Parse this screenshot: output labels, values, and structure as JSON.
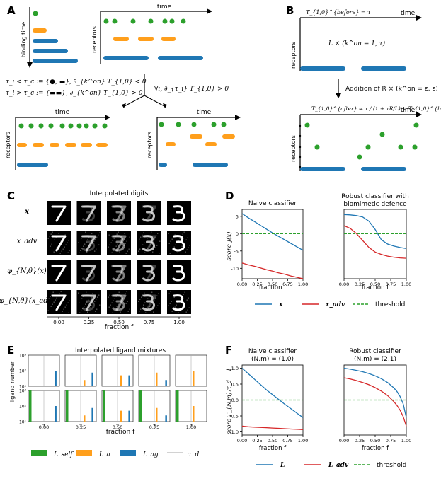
{
  "colors": {
    "green": "#2ca02c",
    "orange": "#ff9f1c",
    "blue": "#1f77b4",
    "red": "#d62728",
    "gray": "#888888"
  },
  "panel_a": {
    "label": "A",
    "axis_time": "time",
    "axis_binding_time": "binding time",
    "axis_receptors": "receptors",
    "eq1": "τ_i < τ_c := {●, ▬}, ∂_{k^on} T_{1,0} < 0",
    "eq2": "τ_i > τ_c := {▬▬}, ∂_{k^on} T_{1,0} > 0",
    "eq3": "∀i, ∂_{τ_i} T_{1,0} > 0"
  },
  "panel_b": {
    "label": "B",
    "axis_time": "time",
    "axis_receptors": "receptors",
    "top_eq": "T_{1,0}^{before} = τ",
    "mid_eq": "L × (k^on = 1, τ)",
    "addition": "Addition of R × (k^on = ε, ε)",
    "bottom_eq": "T_{1,0}^{after} ≃ τ / (1 + τR/L) < T_{1,0}^{before}"
  },
  "panel_c": {
    "label": "C",
    "title": "Interpolated digits",
    "rows": [
      "x",
      "x_adv",
      "φ_{N,θ}(x)",
      "φ_{N,θ}(x_adv)"
    ],
    "xticks": [
      "0.00",
      "0.25",
      "0.50",
      "0.75",
      "1.00"
    ],
    "xlabel": "fraction f"
  },
  "panel_d": {
    "label": "D",
    "left_title": "Naive classifier",
    "right_title": "Robust classifier with\nbiomimetic defence",
    "ylabel": "score  J(x)",
    "xlabel": "fraction f",
    "legend": [
      "x",
      "x_adv",
      "threshold"
    ]
  },
  "panel_e": {
    "label": "E",
    "title": "Interpolated ligand mixtures",
    "ylabel": "ligand number",
    "xlabel": "fraction f",
    "tau_label": "τ",
    "legend": [
      "L_self",
      "L_a",
      "L_ag",
      "τ_d"
    ]
  },
  "panel_f": {
    "label": "F",
    "left_title": "Naive classifier\n(N,m) = (1,0)",
    "right_title": "Robust classifier\n(N,m) = (2,1)",
    "ylabel": "score  T_{N,m}/τ_d − 1",
    "xlabel": "fraction f",
    "legend": [
      "L",
      "L_adv",
      "threshold"
    ]
  },
  "chart_data": [
    {
      "id": "D-left",
      "type": "line",
      "title": "Naive classifier",
      "xlabel": "fraction f",
      "ylabel": "score J(x)",
      "xlim": [
        0,
        1
      ],
      "ylim": [
        -13,
        7
      ],
      "xticks": [
        0.0,
        0.25,
        0.5,
        0.75,
        1.0
      ],
      "yticks": [
        5,
        0,
        -5,
        -10
      ],
      "x": [
        0,
        0.1,
        0.2,
        0.3,
        0.4,
        0.5,
        0.6,
        0.7,
        0.8,
        0.9,
        1.0
      ],
      "series": [
        {
          "name": "x",
          "values": [
            5.8,
            4.6,
            3.5,
            2.4,
            1.3,
            0.2,
            -0.8,
            -1.8,
            -2.8,
            -3.8,
            -4.8
          ]
        },
        {
          "name": "x_adv",
          "values": [
            -8.5,
            -9.0,
            -9.4,
            -9.9,
            -10.4,
            -10.8,
            -11.3,
            -11.7,
            -12.2,
            -12.6,
            -13.0
          ]
        },
        {
          "name": "threshold",
          "values": [
            0,
            0,
            0,
            0,
            0,
            0,
            0,
            0,
            0,
            0,
            0
          ]
        }
      ]
    },
    {
      "id": "D-right",
      "type": "line",
      "title": "Robust classifier with biomimetic defence",
      "xlabel": "fraction f",
      "xlim": [
        0,
        1
      ],
      "ylim": [
        -13,
        7
      ],
      "xticks": [
        0.0,
        0.25,
        0.5,
        0.75,
        1.0
      ],
      "x": [
        0,
        0.1,
        0.2,
        0.3,
        0.4,
        0.5,
        0.6,
        0.7,
        0.8,
        0.9,
        1.0
      ],
      "series": [
        {
          "name": "x",
          "values": [
            5.5,
            5.4,
            5.2,
            4.8,
            3.6,
            1.2,
            -1.8,
            -3.0,
            -3.6,
            -4.0,
            -4.3
          ]
        },
        {
          "name": "x_adv",
          "values": [
            2.3,
            1.5,
            0.0,
            -2.0,
            -4.0,
            -5.3,
            -6.0,
            -6.5,
            -6.8,
            -7.0,
            -7.1
          ]
        },
        {
          "name": "threshold",
          "values": [
            0,
            0,
            0,
            0,
            0,
            0,
            0,
            0,
            0,
            0,
            0
          ]
        }
      ]
    },
    {
      "id": "F-left",
      "type": "line",
      "title": "Naive classifier (N,m) = (1,0)",
      "xlabel": "fraction f",
      "ylabel": "score T_{N,m}/τ_d − 1",
      "xlim": [
        0,
        1
      ],
      "ylim": [
        -1.1,
        1.1
      ],
      "xticks": [
        0.0,
        0.25,
        0.5,
        0.75,
        1.0
      ],
      "yticks": [
        1.0,
        0.5,
        0.0,
        -0.5,
        -1.0
      ],
      "x": [
        0,
        0.1,
        0.2,
        0.3,
        0.4,
        0.5,
        0.6,
        0.7,
        0.8,
        0.9,
        1.0
      ],
      "series": [
        {
          "name": "L",
          "values": [
            1.0,
            0.83,
            0.66,
            0.49,
            0.32,
            0.17,
            0.02,
            -0.13,
            -0.27,
            -0.41,
            -0.55
          ]
        },
        {
          "name": "L_adv",
          "values": [
            -0.82,
            -0.84,
            -0.85,
            -0.86,
            -0.87,
            -0.88,
            -0.89,
            -0.9,
            -0.91,
            -0.92,
            -0.93
          ]
        },
        {
          "name": "threshold",
          "values": [
            0,
            0,
            0,
            0,
            0,
            0,
            0,
            0,
            0,
            0,
            0
          ]
        }
      ]
    },
    {
      "id": "F-right",
      "type": "line",
      "title": "Robust classifier (N,m) = (2,1)",
      "xlabel": "fraction f",
      "xlim": [
        0,
        1
      ],
      "ylim": [
        -1.1,
        1.1
      ],
      "xticks": [
        0.0,
        0.25,
        0.5,
        0.75,
        1.0
      ],
      "x": [
        0,
        0.1,
        0.2,
        0.3,
        0.4,
        0.5,
        0.6,
        0.7,
        0.8,
        0.85,
        0.9,
        0.95,
        1.0
      ],
      "series": [
        {
          "name": "L",
          "values": [
            1.0,
            0.97,
            0.93,
            0.89,
            0.83,
            0.76,
            0.67,
            0.55,
            0.38,
            0.27,
            0.11,
            -0.12,
            -0.55
          ]
        },
        {
          "name": "L_adv",
          "values": [
            0.7,
            0.66,
            0.61,
            0.55,
            0.48,
            0.39,
            0.28,
            0.14,
            -0.05,
            -0.17,
            -0.32,
            -0.52,
            -0.82
          ]
        },
        {
          "name": "threshold",
          "values": [
            0,
            0,
            0,
            0,
            0,
            0,
            0,
            0,
            0,
            0,
            0,
            0,
            0
          ]
        }
      ]
    },
    {
      "id": "E",
      "type": "bar",
      "title": "Interpolated ligand mixtures",
      "ylabel": "ligand number",
      "xlabel": "fraction f",
      "xticks": [
        0.0,
        0.25,
        0.5,
        0.75,
        1.0
      ],
      "yticks": [
        "10^1",
        "10^2",
        "10^3"
      ],
      "yscale": "log",
      "top_row": [
        {
          "L_a": 0,
          "L_ag": 100
        },
        {
          "L_a": 25,
          "L_ag": 75
        },
        {
          "L_a": 50,
          "L_ag": 50
        },
        {
          "L_a": 75,
          "L_ag": 25
        },
        {
          "L_a": 100,
          "L_ag": 0
        }
      ],
      "bottom_row": [
        {
          "L_self": 1000,
          "L_a": 0,
          "L_ag": 100
        },
        {
          "L_self": 1000,
          "L_a": 25,
          "L_ag": 75
        },
        {
          "L_self": 1000,
          "L_a": 50,
          "L_ag": 50
        },
        {
          "L_self": 1000,
          "L_a": 75,
          "L_ag": 25
        },
        {
          "L_self": 1000,
          "L_a": 100,
          "L_ag": 0
        }
      ]
    }
  ]
}
